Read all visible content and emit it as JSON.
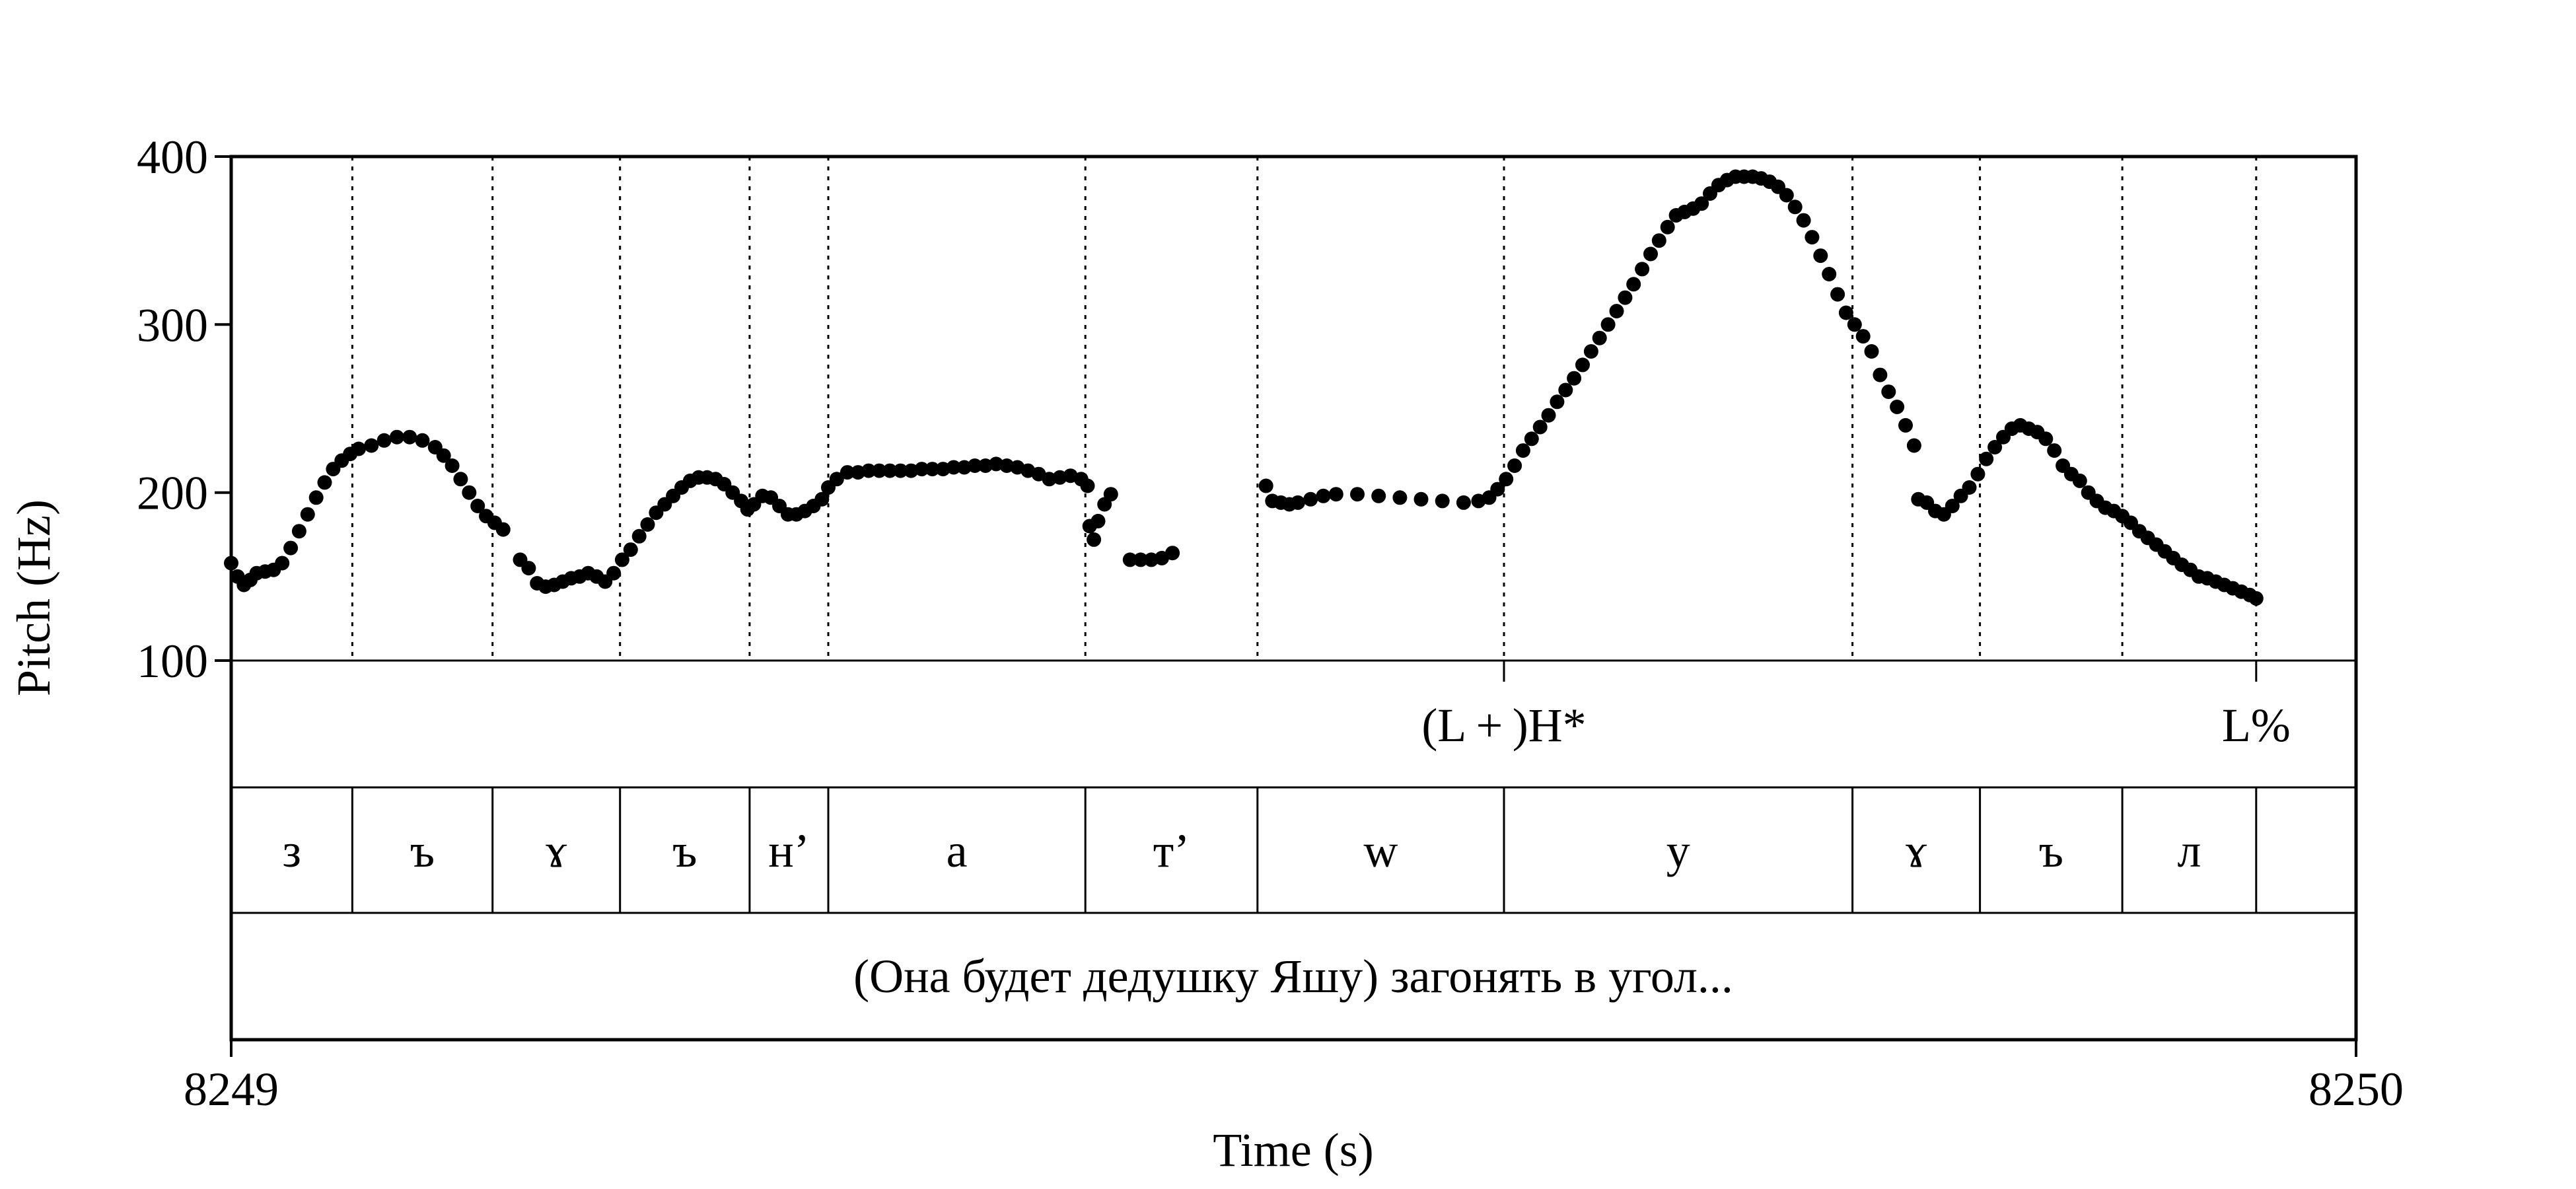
{
  "chart_data": {
    "type": "scatter",
    "ylabel": "Pitch (Hz)",
    "xlabel": "Time (s)",
    "x_ticks": [
      "8249",
      "8250"
    ],
    "xlim": [
      8249,
      8250
    ],
    "y_ticks": [
      "100",
      "200",
      "300",
      "400"
    ],
    "ylim": [
      100,
      400
    ],
    "boundaries": [
      0.057,
      0.123,
      0.183,
      0.244,
      0.281,
      0.402,
      0.483,
      0.599,
      0.763,
      0.823,
      0.89,
      0.953
    ],
    "tones": [
      {
        "t": 0.599,
        "label": "(L + )H*"
      },
      {
        "t": 0.953,
        "label": "L%"
      }
    ],
    "segments": [
      {
        "label": "з",
        "start": 0.0,
        "end": 0.057
      },
      {
        "label": "ъ",
        "start": 0.057,
        "end": 0.123
      },
      {
        "label": "ɤ",
        "start": 0.123,
        "end": 0.183
      },
      {
        "label": "ъ",
        "start": 0.183,
        "end": 0.244
      },
      {
        "label": "н’",
        "start": 0.244,
        "end": 0.281
      },
      {
        "label": "а",
        "start": 0.281,
        "end": 0.402
      },
      {
        "label": "т’",
        "start": 0.402,
        "end": 0.483
      },
      {
        "label": "w",
        "start": 0.483,
        "end": 0.599
      },
      {
        "label": "у",
        "start": 0.599,
        "end": 0.763
      },
      {
        "label": "ɤ",
        "start": 0.763,
        "end": 0.823
      },
      {
        "label": "ъ",
        "start": 0.823,
        "end": 0.89
      },
      {
        "label": "л",
        "start": 0.89,
        "end": 0.953
      }
    ],
    "sentence": "(Она будет дедушку Яшу) загонять в угол...",
    "pitch_contours": [
      [
        [
          0.0,
          158
        ],
        [
          0.003,
          150
        ],
        [
          0.006,
          145
        ],
        [
          0.009,
          148
        ],
        [
          0.012,
          152
        ],
        [
          0.016,
          153
        ],
        [
          0.02,
          154
        ],
        [
          0.024,
          158
        ],
        [
          0.028,
          167
        ],
        [
          0.032,
          177
        ],
        [
          0.036,
          187
        ],
        [
          0.04,
          197
        ],
        [
          0.044,
          206
        ],
        [
          0.048,
          214
        ],
        [
          0.052,
          219
        ],
        [
          0.056,
          223
        ],
        [
          0.06,
          226
        ],
        [
          0.066,
          228
        ],
        [
          0.072,
          231
        ],
        [
          0.078,
          233
        ],
        [
          0.084,
          233
        ],
        [
          0.09,
          231
        ],
        [
          0.096,
          227
        ],
        [
          0.1,
          222
        ],
        [
          0.104,
          216
        ],
        [
          0.108,
          208
        ],
        [
          0.112,
          200
        ],
        [
          0.116,
          192
        ],
        [
          0.12,
          186
        ],
        [
          0.124,
          182
        ],
        [
          0.128,
          178
        ]
      ],
      [
        [
          0.136,
          160
        ],
        [
          0.14,
          155
        ],
        [
          0.144,
          146
        ],
        [
          0.148,
          144
        ],
        [
          0.152,
          145
        ],
        [
          0.156,
          147
        ],
        [
          0.16,
          149
        ],
        [
          0.164,
          150
        ],
        [
          0.168,
          152
        ],
        [
          0.172,
          150
        ],
        [
          0.176,
          147
        ],
        [
          0.18,
          152
        ],
        [
          0.184,
          160
        ],
        [
          0.188,
          166
        ],
        [
          0.192,
          174
        ],
        [
          0.196,
          181
        ],
        [
          0.2,
          188
        ],
        [
          0.204,
          193
        ],
        [
          0.208,
          198
        ],
        [
          0.212,
          203
        ],
        [
          0.216,
          207
        ],
        [
          0.22,
          209
        ],
        [
          0.224,
          209
        ],
        [
          0.228,
          208
        ],
        [
          0.232,
          205
        ],
        [
          0.236,
          200
        ],
        [
          0.24,
          195
        ],
        [
          0.243,
          190
        ],
        [
          0.246,
          193
        ],
        [
          0.25,
          198
        ],
        [
          0.254,
          197
        ],
        [
          0.258,
          192
        ],
        [
          0.262,
          187
        ],
        [
          0.266,
          187
        ],
        [
          0.27,
          189
        ],
        [
          0.274,
          192
        ],
        [
          0.278,
          196
        ],
        [
          0.281,
          203
        ],
        [
          0.285,
          208
        ],
        [
          0.29,
          212
        ],
        [
          0.295,
          212
        ],
        [
          0.3,
          213
        ],
        [
          0.305,
          213
        ],
        [
          0.31,
          213
        ],
        [
          0.315,
          213
        ],
        [
          0.32,
          213
        ],
        [
          0.325,
          214
        ],
        [
          0.33,
          214
        ],
        [
          0.335,
          214
        ],
        [
          0.34,
          215
        ],
        [
          0.345,
          215
        ],
        [
          0.35,
          216
        ],
        [
          0.355,
          216
        ],
        [
          0.36,
          217
        ],
        [
          0.365,
          216
        ],
        [
          0.37,
          215
        ],
        [
          0.375,
          213
        ],
        [
          0.38,
          211
        ],
        [
          0.385,
          208
        ],
        [
          0.39,
          209
        ],
        [
          0.395,
          210
        ],
        [
          0.4,
          208
        ],
        [
          0.403,
          204
        ]
      ],
      [
        [
          0.404,
          180
        ],
        [
          0.406,
          172
        ],
        [
          0.408,
          183
        ],
        [
          0.411,
          193
        ],
        [
          0.414,
          199
        ]
      ],
      [
        [
          0.423,
          160
        ],
        [
          0.428,
          160
        ],
        [
          0.433,
          160
        ],
        [
          0.438,
          161
        ],
        [
          0.443,
          164
        ]
      ],
      [
        [
          0.487,
          204
        ],
        [
          0.49,
          195
        ],
        [
          0.494,
          194
        ],
        [
          0.498,
          193
        ],
        [
          0.502,
          194
        ],
        [
          0.508,
          196
        ],
        [
          0.514,
          198
        ],
        [
          0.52,
          199
        ],
        [
          0.53,
          199
        ],
        [
          0.54,
          198
        ],
        [
          0.55,
          197
        ],
        [
          0.56,
          196
        ],
        [
          0.57,
          195
        ],
        [
          0.58,
          194
        ],
        [
          0.587,
          195
        ],
        [
          0.592,
          197
        ],
        [
          0.596,
          202
        ],
        [
          0.6,
          208
        ],
        [
          0.604,
          216
        ],
        [
          0.608,
          225
        ],
        [
          0.612,
          232
        ],
        [
          0.616,
          239
        ],
        [
          0.62,
          246
        ],
        [
          0.624,
          254
        ],
        [
          0.628,
          261
        ],
        [
          0.632,
          268
        ],
        [
          0.636,
          276
        ],
        [
          0.64,
          284
        ],
        [
          0.644,
          292
        ],
        [
          0.648,
          300
        ],
        [
          0.652,
          308
        ],
        [
          0.656,
          316
        ],
        [
          0.66,
          324
        ],
        [
          0.664,
          333
        ],
        [
          0.668,
          342
        ],
        [
          0.672,
          350
        ],
        [
          0.676,
          358
        ],
        [
          0.68,
          365
        ],
        [
          0.684,
          367
        ],
        [
          0.688,
          369
        ],
        [
          0.692,
          372
        ],
        [
          0.696,
          378
        ],
        [
          0.7,
          383
        ],
        [
          0.704,
          386
        ],
        [
          0.708,
          388
        ],
        [
          0.712,
          388
        ],
        [
          0.716,
          388
        ],
        [
          0.72,
          387
        ],
        [
          0.724,
          385
        ],
        [
          0.728,
          382
        ],
        [
          0.732,
          377
        ],
        [
          0.736,
          370
        ],
        [
          0.74,
          362
        ],
        [
          0.744,
          352
        ],
        [
          0.748,
          341
        ],
        [
          0.752,
          330
        ],
        [
          0.756,
          318
        ],
        [
          0.76,
          307
        ],
        [
          0.764,
          300
        ],
        [
          0.768,
          293
        ],
        [
          0.772,
          284
        ],
        [
          0.776,
          270
        ],
        [
          0.78,
          260
        ],
        [
          0.784,
          251
        ],
        [
          0.788,
          240
        ],
        [
          0.792,
          228
        ]
      ],
      [
        [
          0.794,
          196
        ],
        [
          0.798,
          194
        ],
        [
          0.802,
          189
        ],
        [
          0.806,
          187
        ],
        [
          0.81,
          192
        ],
        [
          0.814,
          198
        ],
        [
          0.818,
          203
        ],
        [
          0.822,
          211
        ],
        [
          0.826,
          220
        ],
        [
          0.83,
          227
        ],
        [
          0.834,
          233
        ],
        [
          0.838,
          238
        ],
        [
          0.842,
          240
        ],
        [
          0.846,
          238
        ],
        [
          0.85,
          236
        ],
        [
          0.854,
          232
        ],
        [
          0.858,
          225
        ],
        [
          0.862,
          216
        ],
        [
          0.866,
          211
        ],
        [
          0.87,
          207
        ],
        [
          0.874,
          200
        ],
        [
          0.878,
          195
        ],
        [
          0.882,
          191
        ],
        [
          0.886,
          189
        ],
        [
          0.89,
          186
        ],
        [
          0.894,
          182
        ],
        [
          0.898,
          177
        ],
        [
          0.902,
          173
        ],
        [
          0.906,
          169
        ],
        [
          0.91,
          165
        ],
        [
          0.914,
          161
        ],
        [
          0.918,
          157
        ],
        [
          0.922,
          154
        ],
        [
          0.926,
          150
        ],
        [
          0.93,
          149
        ],
        [
          0.934,
          147
        ],
        [
          0.938,
          145
        ],
        [
          0.942,
          143
        ],
        [
          0.946,
          141
        ],
        [
          0.95,
          139
        ],
        [
          0.953,
          137
        ]
      ]
    ]
  }
}
